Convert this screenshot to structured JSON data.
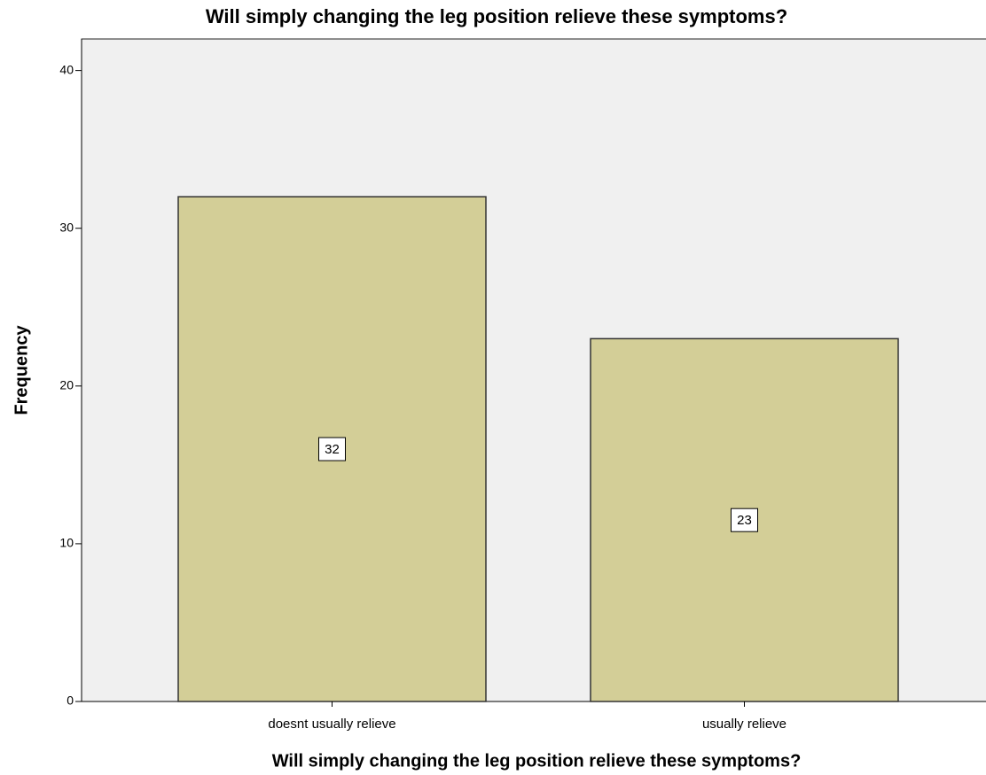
{
  "chart_data": {
    "type": "bar",
    "title": "Will simply changing the leg position relieve these symptoms?",
    "x_label": "Will simply changing the leg position relieve these symptoms?",
    "y_label": "Frequency",
    "categories": [
      "doesnt usually relieve",
      "usually relieve"
    ],
    "values": [
      32,
      23
    ],
    "color": "#d3ce97",
    "ylim": [
      0,
      42
    ],
    "yticks": [
      0,
      10,
      20,
      30,
      40
    ]
  }
}
